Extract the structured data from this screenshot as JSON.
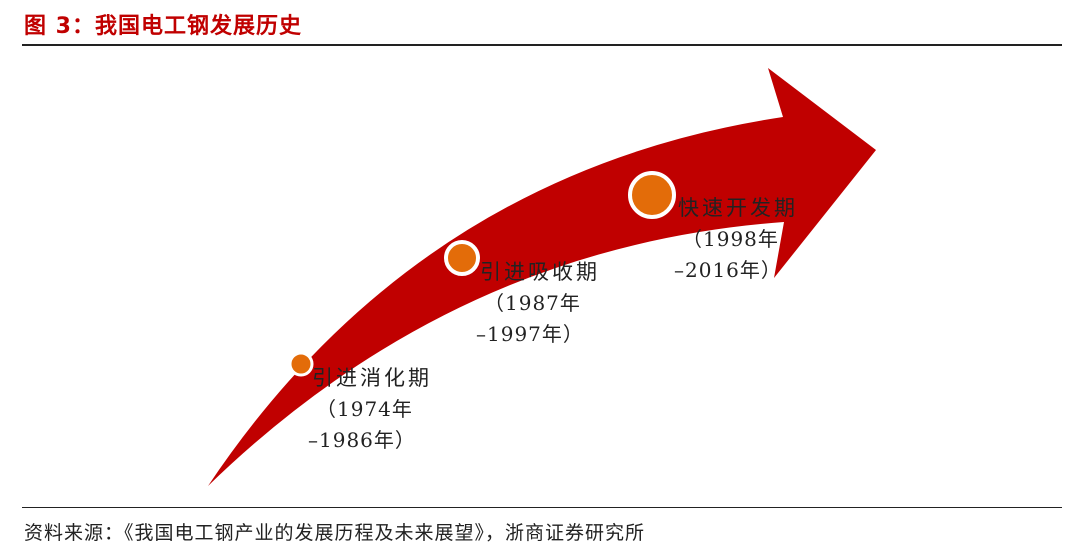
{
  "figure": {
    "title": "图 3：我国电工钢发展历史",
    "source": "资料来源：《我国电工钢产业的发展历程及未来展望》，浙商证券研究所"
  },
  "stages": [
    {
      "name": "引进消化期",
      "period_line1": "（1974年",
      "period_line2": "–1986年）"
    },
    {
      "name": "引进吸收期",
      "period_line1": "（1987年",
      "period_line2": "–1997年）"
    },
    {
      "name": "快速开发期",
      "period_line1": "（1998年",
      "period_line2": "–2016年）"
    }
  ],
  "colors": {
    "arrow": "#c00000",
    "marker": "#e36c09",
    "title": "#c00000"
  }
}
